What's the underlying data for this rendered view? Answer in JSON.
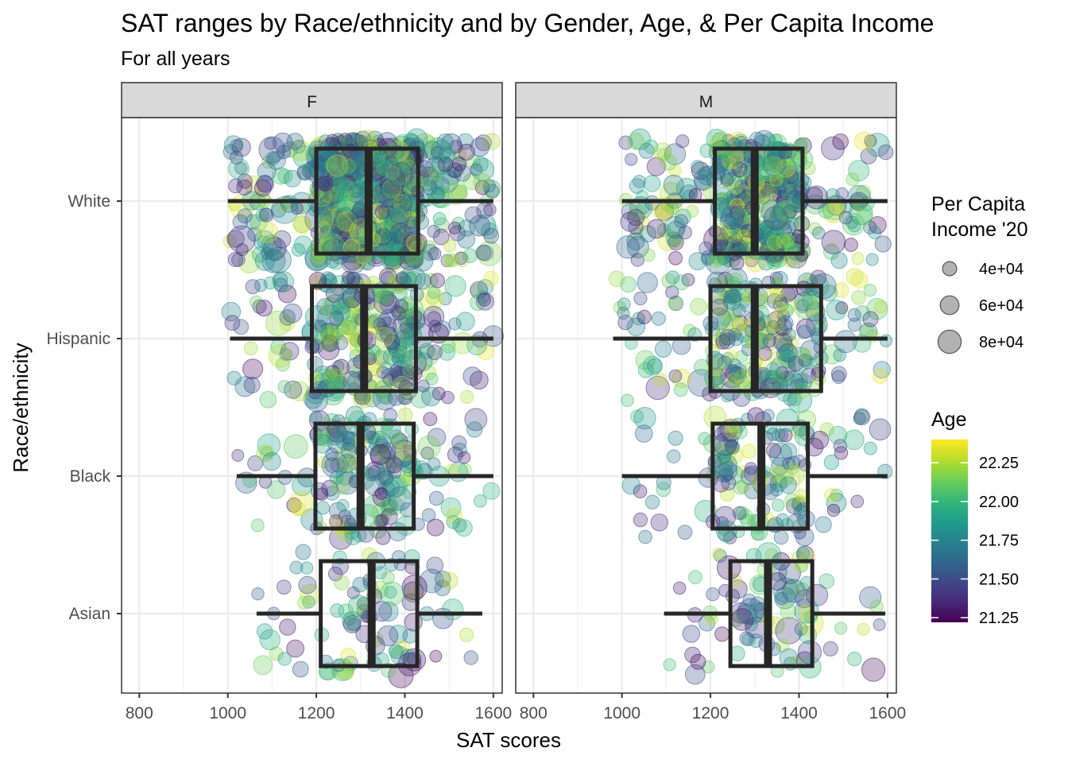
{
  "chart_data": {
    "type": "scatter",
    "subtype": "jitter points with boxplot overlay, faceted by gender",
    "title": "SAT ranges by Race/ethnicity and by Gender, Age, & Per Capita Income",
    "subtitle": "For all years",
    "xlabel": "SAT scores",
    "ylabel": "Race/ethnicity",
    "xlim": [
      760,
      1620
    ],
    "x_ticks": [
      800,
      1000,
      1200,
      1400,
      1600
    ],
    "x_tick_labels": [
      "800",
      "1000",
      "1200",
      "1400",
      "1600"
    ],
    "categories": [
      "White",
      "Hispanic",
      "Black",
      "Asian"
    ],
    "grid": true,
    "facets": [
      {
        "label": "F",
        "boxplots": [
          {
            "category": "White",
            "min": 1000,
            "q1": 1200,
            "median": 1318,
            "q3": 1430,
            "max": 1600
          },
          {
            "category": "Hispanic",
            "min": 1005,
            "q1": 1190,
            "median": 1308,
            "q3": 1425,
            "max": 1600
          },
          {
            "category": "Black",
            "min": 1020,
            "q1": 1198,
            "median": 1300,
            "q3": 1420,
            "max": 1600
          },
          {
            "category": "Asian",
            "min": 1065,
            "q1": 1210,
            "median": 1325,
            "q3": 1428,
            "max": 1575
          }
        ],
        "points": [
          {
            "category": "White",
            "n": 700,
            "x_range": [
              1000,
              1600
            ]
          },
          {
            "category": "Hispanic",
            "n": 300,
            "x_range": [
              1005,
              1600
            ]
          },
          {
            "category": "Black",
            "n": 190,
            "x_range": [
              1020,
              1600
            ]
          },
          {
            "category": "Asian",
            "n": 100,
            "x_range": [
              1065,
              1575
            ]
          }
        ]
      },
      {
        "label": "M",
        "boxplots": [
          {
            "category": "White",
            "min": 1000,
            "q1": 1210,
            "median": 1300,
            "q3": 1408,
            "max": 1600
          },
          {
            "category": "Hispanic",
            "min": 980,
            "q1": 1200,
            "median": 1300,
            "q3": 1450,
            "max": 1600
          },
          {
            "category": "Black",
            "min": 1000,
            "q1": 1205,
            "median": 1315,
            "q3": 1420,
            "max": 1600
          },
          {
            "category": "Asian",
            "min": 1095,
            "q1": 1245,
            "median": 1330,
            "q3": 1430,
            "max": 1595
          }
        ],
        "points": [
          {
            "category": "White",
            "n": 420,
            "x_range": [
              1000,
              1600
            ]
          },
          {
            "category": "Hispanic",
            "n": 260,
            "x_range": [
              980,
              1600
            ]
          },
          {
            "category": "Black",
            "n": 150,
            "x_range": [
              1000,
              1600
            ]
          },
          {
            "category": "Asian",
            "n": 90,
            "x_range": [
              1095,
              1595
            ]
          }
        ]
      }
    ],
    "size_legend": {
      "title_lines": [
        "Per Capita",
        "Income '20"
      ],
      "entries": [
        {
          "label": "4e+04",
          "value": 40000
        },
        {
          "label": "6e+04",
          "value": 60000
        },
        {
          "label": "8e+04",
          "value": 80000
        }
      ]
    },
    "color_legend": {
      "title": "Age",
      "range": [
        21.22,
        22.4
      ],
      "ticks": [
        21.25,
        21.5,
        21.75,
        22.0,
        22.25
      ],
      "tick_labels": [
        "21.25",
        "21.50",
        "21.75",
        "22.00",
        "22.25"
      ],
      "palette": [
        "#440154",
        "#482878",
        "#3e4989",
        "#31688e",
        "#26828e",
        "#1f9e89",
        "#35b779",
        "#6ece58",
        "#b5de2b",
        "#fde725"
      ]
    },
    "legend_position": "right"
  }
}
